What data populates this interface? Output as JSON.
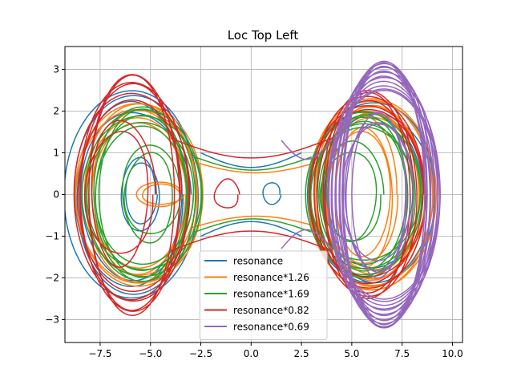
{
  "chart_data": {
    "type": "line",
    "title": "Loc Top Left",
    "xlabel": "",
    "ylabel": "",
    "xlim": [
      -9.25,
      10.5
    ],
    "ylim": [
      -3.55,
      3.55
    ],
    "xticks": [
      -7.5,
      -5.0,
      -2.5,
      0.0,
      2.5,
      5.0,
      7.5,
      10.0
    ],
    "xtick_labels": [
      "−7.5",
      "−5.0",
      "−2.5",
      "0.0",
      "2.5",
      "5.0",
      "7.5",
      "10.0"
    ],
    "yticks": [
      -3,
      -2,
      -1,
      0,
      1,
      2,
      3
    ],
    "ytick_labels": [
      "−3",
      "−2",
      "−1",
      "0",
      "1",
      "2",
      "3"
    ],
    "grid": true,
    "legend_position": "lower-center",
    "series": [
      {
        "name": "resonance",
        "color": "#1f77b4",
        "description": "phase portrait orbits",
        "orbits": [
          {
            "cx": -5.9,
            "rx": 3.4,
            "ry": 2.5,
            "lean": 0.0,
            "turns": 4
          },
          {
            "cx": 6.1,
            "rx": 3.3,
            "ry": 2.2,
            "lean": 0.0,
            "turns": 3
          },
          {
            "cx": -5.5,
            "rx": 1.0,
            "ry": 0.9,
            "lean": 0.0,
            "turns": 2
          },
          {
            "cx": 1.0,
            "rx": 0.5,
            "ry": 0.3,
            "lean": 0.0,
            "turns": 1
          }
        ],
        "bridges": [
          {
            "from": -2.5,
            "to": 2.5,
            "amp": 1.0
          }
        ]
      },
      {
        "name": "resonance*1.26",
        "color": "#ff7f0e",
        "orbits": [
          {
            "cx": -5.6,
            "rx": 3.2,
            "ry": 2.2,
            "lean": 0.0,
            "turns": 6
          },
          {
            "cx": 6.0,
            "rx": 3.2,
            "ry": 2.3,
            "lean": 0.0,
            "turns": 8
          },
          {
            "cx": -4.5,
            "rx": 1.2,
            "ry": 0.3,
            "lean": 0.0,
            "turns": 2
          },
          {
            "cx": 5.5,
            "rx": 1.8,
            "ry": 1.9,
            "lean": 0.0,
            "turns": 3
          }
        ],
        "bridges": [
          {
            "from": -3.0,
            "to": 3.5,
            "amp": 0.8
          }
        ]
      },
      {
        "name": "resonance*1.69",
        "color": "#2ca02c",
        "orbits": [
          {
            "cx": -5.4,
            "rx": 3.0,
            "ry": 2.1,
            "lean": 0.0,
            "turns": 7
          },
          {
            "cx": 5.6,
            "rx": 2.9,
            "ry": 2.0,
            "lean": 0.0,
            "turns": 7
          },
          {
            "cx": -5.0,
            "rx": 1.5,
            "ry": 1.2,
            "lean": 0.0,
            "turns": 2
          },
          {
            "cx": 5.0,
            "rx": 1.6,
            "ry": 1.3,
            "lean": 0.0,
            "turns": 2
          }
        ],
        "bridges": [
          {
            "from": -2.8,
            "to": 3.0,
            "amp": 0.9
          }
        ]
      },
      {
        "name": "resonance*0.82",
        "color": "#d62728",
        "orbits": [
          {
            "cx": -5.9,
            "rx": 2.9,
            "ry": 2.9,
            "lean": 0.0,
            "turns": 6
          },
          {
            "cx": 5.8,
            "rx": 2.9,
            "ry": 2.5,
            "lean": 0.0,
            "turns": 6
          },
          {
            "cx": -6.5,
            "rx": 1.8,
            "ry": 1.8,
            "lean": 0.0,
            "turns": 2
          },
          {
            "cx": -1.2,
            "rx": 0.7,
            "ry": 0.4,
            "lean": 0.0,
            "turns": 1
          }
        ],
        "bridges": [
          {
            "from": -4.0,
            "to": 4.0,
            "amp": 1.35
          }
        ]
      },
      {
        "name": "resonance*0.69",
        "color": "#9467bd",
        "orbits": [
          {
            "cx": 6.6,
            "rx": 2.8,
            "ry": 3.2,
            "lean": 0.0,
            "turns": 14
          },
          {
            "cx": 6.3,
            "rx": 1.8,
            "ry": 2.0,
            "lean": 0.0,
            "turns": 4
          }
        ],
        "bridges": [
          {
            "from": 1.5,
            "to": 4.0,
            "amp": 1.3
          }
        ]
      }
    ]
  }
}
